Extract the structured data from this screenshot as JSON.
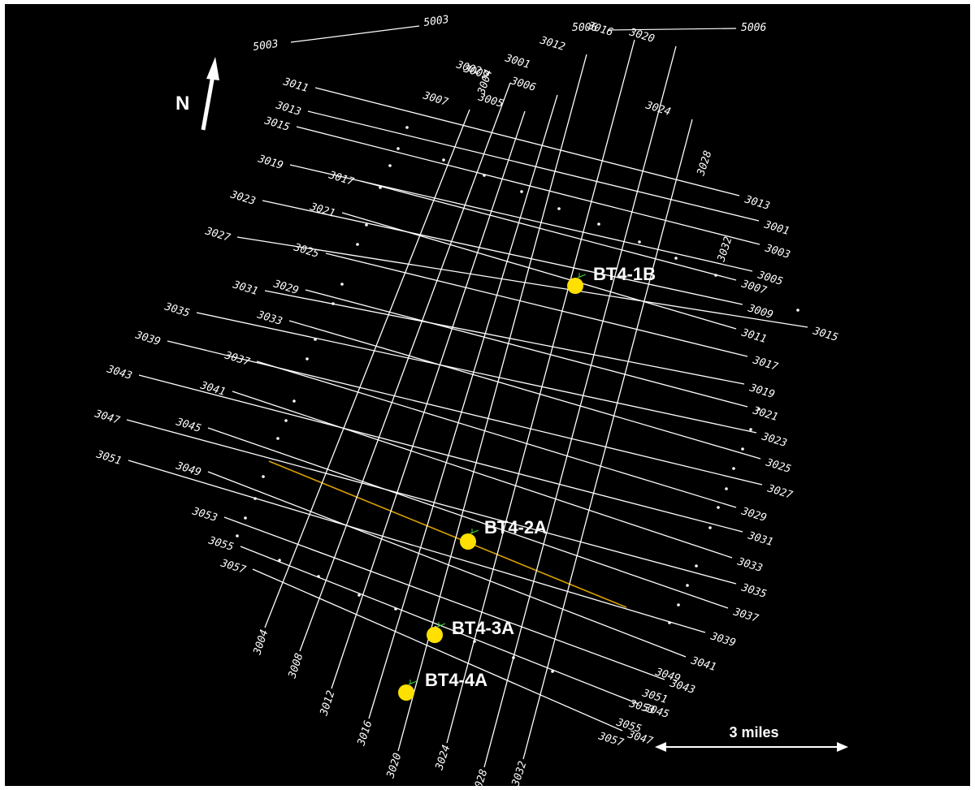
{
  "map": {
    "north_label": "N",
    "scale_label": "3 miles",
    "colors": {
      "background": "#000000",
      "line": "#ffffff",
      "highlight_line": "#d8a000",
      "well": "#ffe000",
      "well_tick": "#44dd44"
    },
    "lines_nw_se": [
      {
        "start": "3011",
        "end": "3013"
      },
      {
        "start": "3013",
        "end": "3001"
      },
      {
        "start": "3015",
        "end": "3003"
      },
      {
        "start": "3019",
        "end": "3005"
      },
      {
        "start": "3017",
        "end": "3007"
      },
      {
        "start": "3023",
        "end": "3009"
      },
      {
        "start": "3021",
        "end": "3011"
      },
      {
        "start": "3027",
        "end": "3015"
      },
      {
        "start": "3025",
        "end": "3017"
      },
      {
        "start": "3031",
        "end": "3019"
      },
      {
        "start": "3029",
        "end": "3021"
      },
      {
        "start": "3035",
        "end": "3023"
      },
      {
        "start": "3033",
        "end": "3025"
      },
      {
        "start": "3039",
        "end": "3027"
      },
      {
        "start": "3037",
        "end": "3029"
      },
      {
        "start": "3043",
        "end": "3031"
      },
      {
        "start": "3041",
        "end": "3033"
      },
      {
        "start": "3047",
        "end": "3035"
      },
      {
        "start": "3045",
        "end": "3037"
      },
      {
        "start": "3051",
        "end": "3039"
      },
      {
        "start": "3049",
        "end": "3041"
      },
      {
        "start": "3053",
        "end": "3043"
      },
      {
        "start": "3055",
        "end": "3045"
      },
      {
        "start": "3057",
        "end": "3047"
      }
    ],
    "extra_se_labels": [
      "3049",
      "3051",
      "3053",
      "3055",
      "3057"
    ],
    "lines_ne_sw": [
      {
        "top": "3007",
        "bottom": "3004"
      },
      {
        "top": "3009",
        "bottom": "3008"
      },
      {
        "top": "3005",
        "bottom": "3012"
      },
      {
        "top": "3006",
        "bottom": "3016"
      },
      {
        "top": "3012",
        "bottom": "3020"
      },
      {
        "top": "3016",
        "bottom": "3024"
      },
      {
        "top": "3020",
        "bottom": "3028"
      },
      {
        "top": "3024",
        "bottom": "3032"
      }
    ],
    "extra_top_labels": [
      "3002",
      "3004",
      "3001",
      "3028",
      "3032"
    ],
    "other_lines": [
      {
        "label_a": "5003",
        "label_b": "5003"
      },
      {
        "label_a": "5006",
        "label_b": "5006"
      }
    ],
    "wells": [
      {
        "name": "BT4-1B"
      },
      {
        "name": "BT4-2A"
      },
      {
        "name": "BT4-3A"
      },
      {
        "name": "BT4-4A"
      }
    ]
  }
}
